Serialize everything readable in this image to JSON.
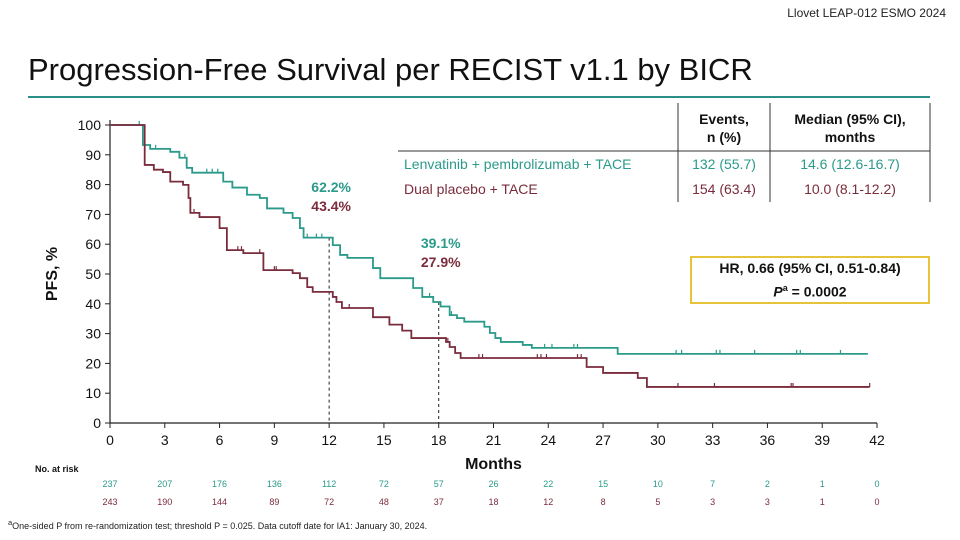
{
  "source_label": "Llovet LEAP-012 ESMO 2024",
  "title": "Progression-Free Survival per RECIST v1.1 by BICR",
  "table": {
    "headers": [
      "",
      "Events,\nn (%)",
      "Median (95% CI),\nmonths"
    ],
    "header_lines": [
      [
        "Events,",
        "n (%)"
      ],
      [
        "Median (95% CI),",
        "months"
      ]
    ],
    "rows": [
      {
        "arm": "Lenvatinib + pembrolizumab + TACE",
        "events": "132 (55.7)",
        "median": "14.6 (12.6-16.7)",
        "color": "#2a9a8a"
      },
      {
        "arm": "Dual placebo + TACE",
        "events": "154 (63.4)",
        "median": "10.0 (8.1-12.2)",
        "color": "#7a2c3c"
      }
    ]
  },
  "hr_box": {
    "line1": "HR, 0.66 (95% CI, 0.51-0.84)",
    "p_symbol": "P",
    "p_sup": "a",
    "p_value": " = 0.0002",
    "border_color": "#e6c43a"
  },
  "footnote": {
    "sup": "a",
    "text": "One-sided P from re-randomization test; threshold P = 0.025. Data cutoff date for IA1: January 30, 2024."
  },
  "chart_data": {
    "type": "line",
    "subtype": "kaplan-meier-step",
    "xlabel": "Months",
    "ylabel": "PFS, %",
    "xlim": [
      0,
      42
    ],
    "ylim": [
      0,
      100
    ],
    "xticks": [
      0,
      3,
      6,
      9,
      12,
      15,
      18,
      21,
      24,
      27,
      30,
      33,
      36,
      39,
      42
    ],
    "yticks": [
      0,
      10,
      20,
      30,
      40,
      50,
      60,
      70,
      80,
      90,
      100
    ],
    "grid": false,
    "series": [
      {
        "name": "Lenvatinib + pembrolizumab + TACE",
        "color": "#2a9a8a",
        "x": [
          0,
          1.8,
          2.2,
          3.3,
          3.8,
          4.2,
          4.5,
          6.2,
          6.7,
          7.5,
          8.2,
          8.6,
          9.5,
          10.0,
          10.4,
          10.6,
          12.2,
          12.6,
          13.0,
          14.4,
          14.8,
          16.6,
          17.1,
          17.7,
          18.1,
          18.6,
          19.0,
          19.4,
          20.5,
          20.8,
          21.1,
          21.4,
          22.6,
          23.1,
          27.8,
          41.5
        ],
        "y": [
          100,
          93.3,
          92,
          91,
          89,
          85.6,
          84,
          81,
          79,
          76.6,
          75.5,
          72,
          70.5,
          68.8,
          65.4,
          62.2,
          59.7,
          56.4,
          55.4,
          52,
          48.6,
          45.3,
          42.3,
          40.6,
          39.1,
          36.2,
          35.2,
          34,
          32.3,
          30.2,
          28.5,
          27.2,
          26.2,
          25.2,
          23.2,
          23.2
        ],
        "censored_x": [
          1.6,
          2.5,
          4.1,
          5.3,
          5.6,
          5.9,
          10.8,
          11.3,
          11.6,
          17.5,
          18.7,
          23.8,
          24.2,
          25.4,
          25.6,
          31.0,
          31.3,
          33.2,
          33.4,
          35.3,
          37.6,
          37.8,
          40.0
        ]
      },
      {
        "name": "Dual placebo + TACE",
        "color": "#7a2c3c",
        "x": [
          0,
          1.9,
          2.4,
          2.9,
          3.3,
          4.0,
          4.3,
          4.4,
          4.9,
          6.0,
          6.4,
          7.3,
          8.4,
          10.0,
          10.4,
          10.8,
          11.1,
          12.2,
          12.4,
          12.7,
          14.4,
          15.3,
          16.0,
          16.5,
          18.4,
          18.6,
          18.9,
          19.2,
          26.1,
          27.0,
          28.9,
          29.4,
          41.6
        ],
        "y": [
          100,
          86.6,
          85,
          84.2,
          81,
          79.9,
          75.5,
          70.5,
          69.1,
          65.4,
          58,
          57,
          51.3,
          50.3,
          48.6,
          45.6,
          44,
          42.3,
          40.6,
          38.6,
          35.5,
          33,
          31,
          28.5,
          27.2,
          25.5,
          23.5,
          21.8,
          18.8,
          16.8,
          15.1,
          12.1,
          12.1
        ],
        "censored_x": [
          4.6,
          7.0,
          7.2,
          8.2,
          9.0,
          9.1,
          13.1,
          18.5,
          20.2,
          20.4,
          23.4,
          23.6,
          23.9,
          25.6,
          25.8,
          31.1,
          33.1,
          37.3,
          37.4,
          41.6
        ]
      }
    ],
    "annotations": [
      {
        "x": 12,
        "labels": [
          "62.2%",
          "43.4%"
        ]
      },
      {
        "x": 18,
        "labels": [
          "39.1%",
          "27.9%"
        ]
      }
    ],
    "risk_table": {
      "label": "No. at risk",
      "rows": [
        {
          "color": "#2a9a8a",
          "values": [
            237,
            207,
            176,
            136,
            112,
            72,
            57,
            26,
            22,
            15,
            10,
            7,
            2,
            1,
            0
          ]
        },
        {
          "color": "#7a2c3c",
          "values": [
            243,
            190,
            144,
            89,
            72,
            48,
            37,
            18,
            12,
            8,
            5,
            3,
            3,
            1,
            0
          ]
        }
      ]
    }
  }
}
